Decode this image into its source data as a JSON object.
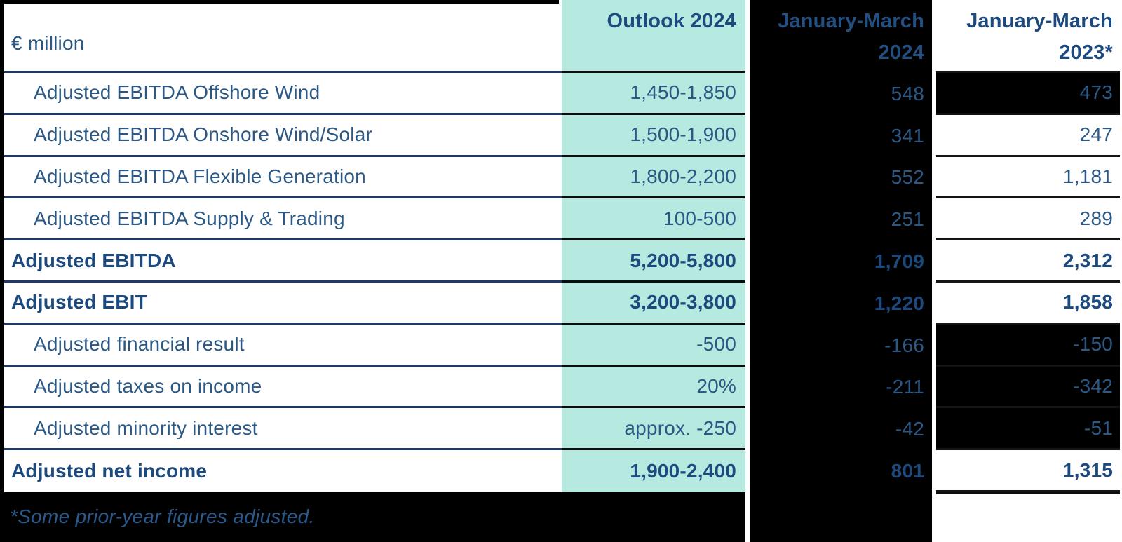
{
  "unit_label": "€ million",
  "columns": [
    {
      "label": "Outlook 2024"
    },
    {
      "label": "January-March 2024"
    },
    {
      "label": "January-March 2023*"
    }
  ],
  "rows": [
    {
      "label": "Adjusted EBITDA Offshore Wind",
      "outlook": "1,450-1,850",
      "jan_mar_2024": "548",
      "jan_mar_2023": "473",
      "bold": false,
      "dark_2023": true,
      "last": false
    },
    {
      "label": "Adjusted EBITDA Onshore Wind/Solar",
      "outlook": "1,500-1,900",
      "jan_mar_2024": "341",
      "jan_mar_2023": "247",
      "bold": false,
      "dark_2023": false,
      "last": false
    },
    {
      "label": "Adjusted EBITDA Flexible Generation",
      "outlook": "1,800-2,200",
      "jan_mar_2024": "552",
      "jan_mar_2023": "1,181",
      "bold": false,
      "dark_2023": false,
      "last": false
    },
    {
      "label": "Adjusted EBITDA Supply & Trading",
      "outlook": "100-500",
      "jan_mar_2024": "251",
      "jan_mar_2023": "289",
      "bold": false,
      "dark_2023": false,
      "last": false
    },
    {
      "label": "Adjusted EBITDA",
      "outlook": "5,200-5,800",
      "jan_mar_2024": "1,709",
      "jan_mar_2023": "2,312",
      "bold": true,
      "dark_2023": false,
      "last": false
    },
    {
      "label": "Adjusted EBIT",
      "outlook": "3,200-3,800",
      "jan_mar_2024": "1,220",
      "jan_mar_2023": "1,858",
      "bold": true,
      "dark_2023": false,
      "last": false
    },
    {
      "label": "Adjusted financial result",
      "outlook": "-500",
      "jan_mar_2024": "-166",
      "jan_mar_2023": "-150",
      "bold": false,
      "dark_2023": true,
      "last": false
    },
    {
      "label": "Adjusted taxes on income",
      "outlook": "20%",
      "jan_mar_2024": "-211",
      "jan_mar_2023": "-342",
      "bold": false,
      "dark_2023": true,
      "last": false
    },
    {
      "label": "Adjusted minority interest",
      "outlook": "approx. -250",
      "jan_mar_2024": "-42",
      "jan_mar_2023": "-51",
      "bold": false,
      "dark_2023": true,
      "last": false
    },
    {
      "label": "Adjusted net income",
      "outlook": "1,900-2,400",
      "jan_mar_2024": "801",
      "jan_mar_2023": "1,315",
      "bold": true,
      "dark_2023": false,
      "last": true
    }
  ],
  "footnote": "*Some prior-year figures adjusted.",
  "colors": {
    "outlook_column_bg": "#b6e9df",
    "dark_cell_bg": "#000000",
    "text_regular": "#2b5884",
    "text_bold": "#1d4a7e",
    "separator_navy": "#1e3a6d",
    "separator_dark": "#0d0d0d",
    "footnote_text": "#2a5a8c"
  }
}
